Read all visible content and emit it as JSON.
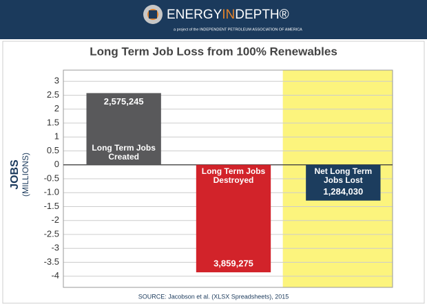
{
  "header": {
    "logo_parts": [
      "ENERGY",
      "IN",
      "DEPTH®"
    ],
    "tagline": "a project of the INDEPENDENT PETROLEUM ASSOCIATION OF AMERICA"
  },
  "chart_data": {
    "type": "bar",
    "title": "Long Term Job Loss from 100% Renewables",
    "y_label": "JOBS",
    "y_sublabel": "(MILLIONS)",
    "categories": [
      "Long Term Jobs Created",
      "Long Term Jobs Destroyed",
      "Net Long Term Jobs Lost"
    ],
    "values": [
      2.575245,
      -3.859275,
      -1.28403
    ],
    "value_labels": [
      "2,575,245",
      "3,859,275",
      "1,284,030"
    ],
    "colors": [
      "#59595b",
      "#d2232a",
      "#1c3d5e"
    ],
    "highlight": {
      "index": 2,
      "color": "#fcf47d"
    },
    "ylim": [
      -4.4,
      3.4
    ],
    "yticks": [
      3,
      2.5,
      2,
      1.5,
      1,
      0.5,
      0,
      -0.5,
      {
        "value": -1,
        "label": "-1.0"
      },
      -1.5,
      -2,
      -2.5,
      -3,
      -3.5,
      -4
    ],
    "grid": true,
    "source": "SOURCE: Jacobson et al. (XLSX Spreadsheets), 2015"
  }
}
